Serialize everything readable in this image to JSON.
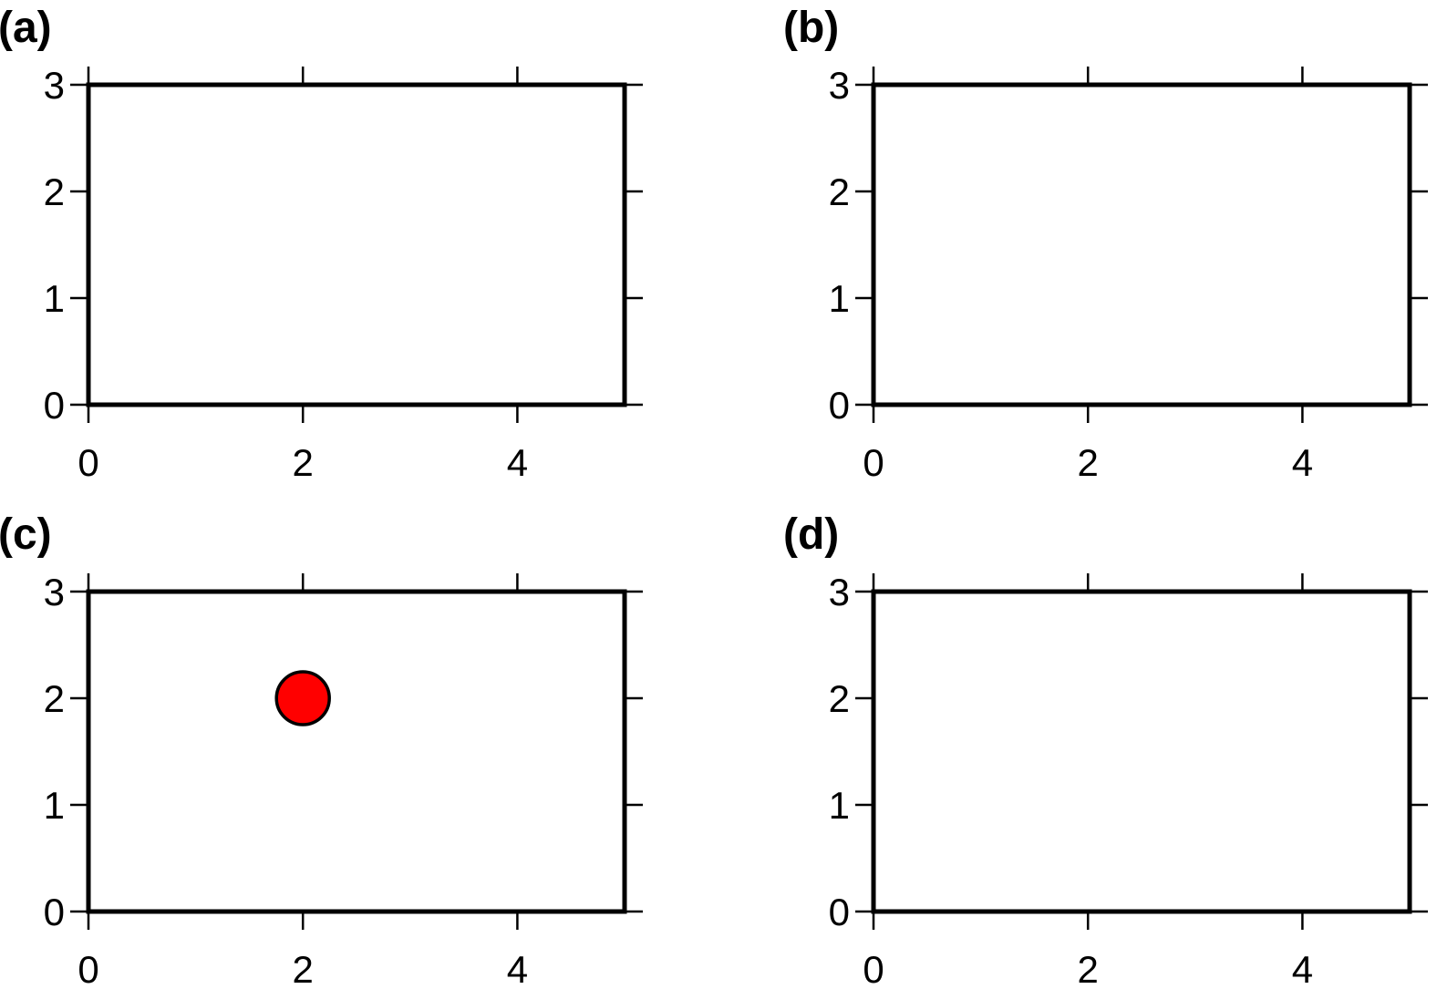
{
  "chart_data": [
    {
      "type": "scatter",
      "panel_label": "(a)",
      "xlim": [
        0,
        5
      ],
      "ylim": [
        0,
        3
      ],
      "x_ticks": [
        0,
        2,
        4
      ],
      "y_ticks": [
        0,
        1,
        2,
        3
      ],
      "x_tick_labels": [
        "0",
        "2",
        "4"
      ],
      "y_tick_labels": [
        "0",
        "1",
        "2",
        "3"
      ],
      "grid": false,
      "points": []
    },
    {
      "type": "scatter",
      "panel_label": "(b)",
      "xlim": [
        0,
        5
      ],
      "ylim": [
        0,
        3
      ],
      "x_ticks": [
        0,
        2,
        4
      ],
      "y_ticks": [
        0,
        1,
        2,
        3
      ],
      "x_tick_labels": [
        "0",
        "2",
        "4"
      ],
      "y_tick_labels": [
        "0",
        "1",
        "2",
        "3"
      ],
      "grid": false,
      "points": []
    },
    {
      "type": "scatter",
      "panel_label": "(c)",
      "xlim": [
        0,
        5
      ],
      "ylim": [
        0,
        3
      ],
      "x_ticks": [
        0,
        2,
        4
      ],
      "y_ticks": [
        0,
        1,
        2,
        3
      ],
      "x_tick_labels": [
        "0",
        "2",
        "4"
      ],
      "y_tick_labels": [
        "0",
        "1",
        "2",
        "3"
      ],
      "grid": false,
      "points": [
        {
          "x": 2,
          "y": 2,
          "color": "#ff0000",
          "marker": "circle"
        }
      ]
    },
    {
      "type": "scatter",
      "panel_label": "(d)",
      "xlim": [
        0,
        5
      ],
      "ylim": [
        0,
        3
      ],
      "x_ticks": [
        0,
        2,
        4
      ],
      "y_ticks": [
        0,
        1,
        2,
        3
      ],
      "x_tick_labels": [
        "0",
        "2",
        "4"
      ],
      "y_tick_labels": [
        "0",
        "1",
        "2",
        "3"
      ],
      "grid": false,
      "points": []
    }
  ]
}
